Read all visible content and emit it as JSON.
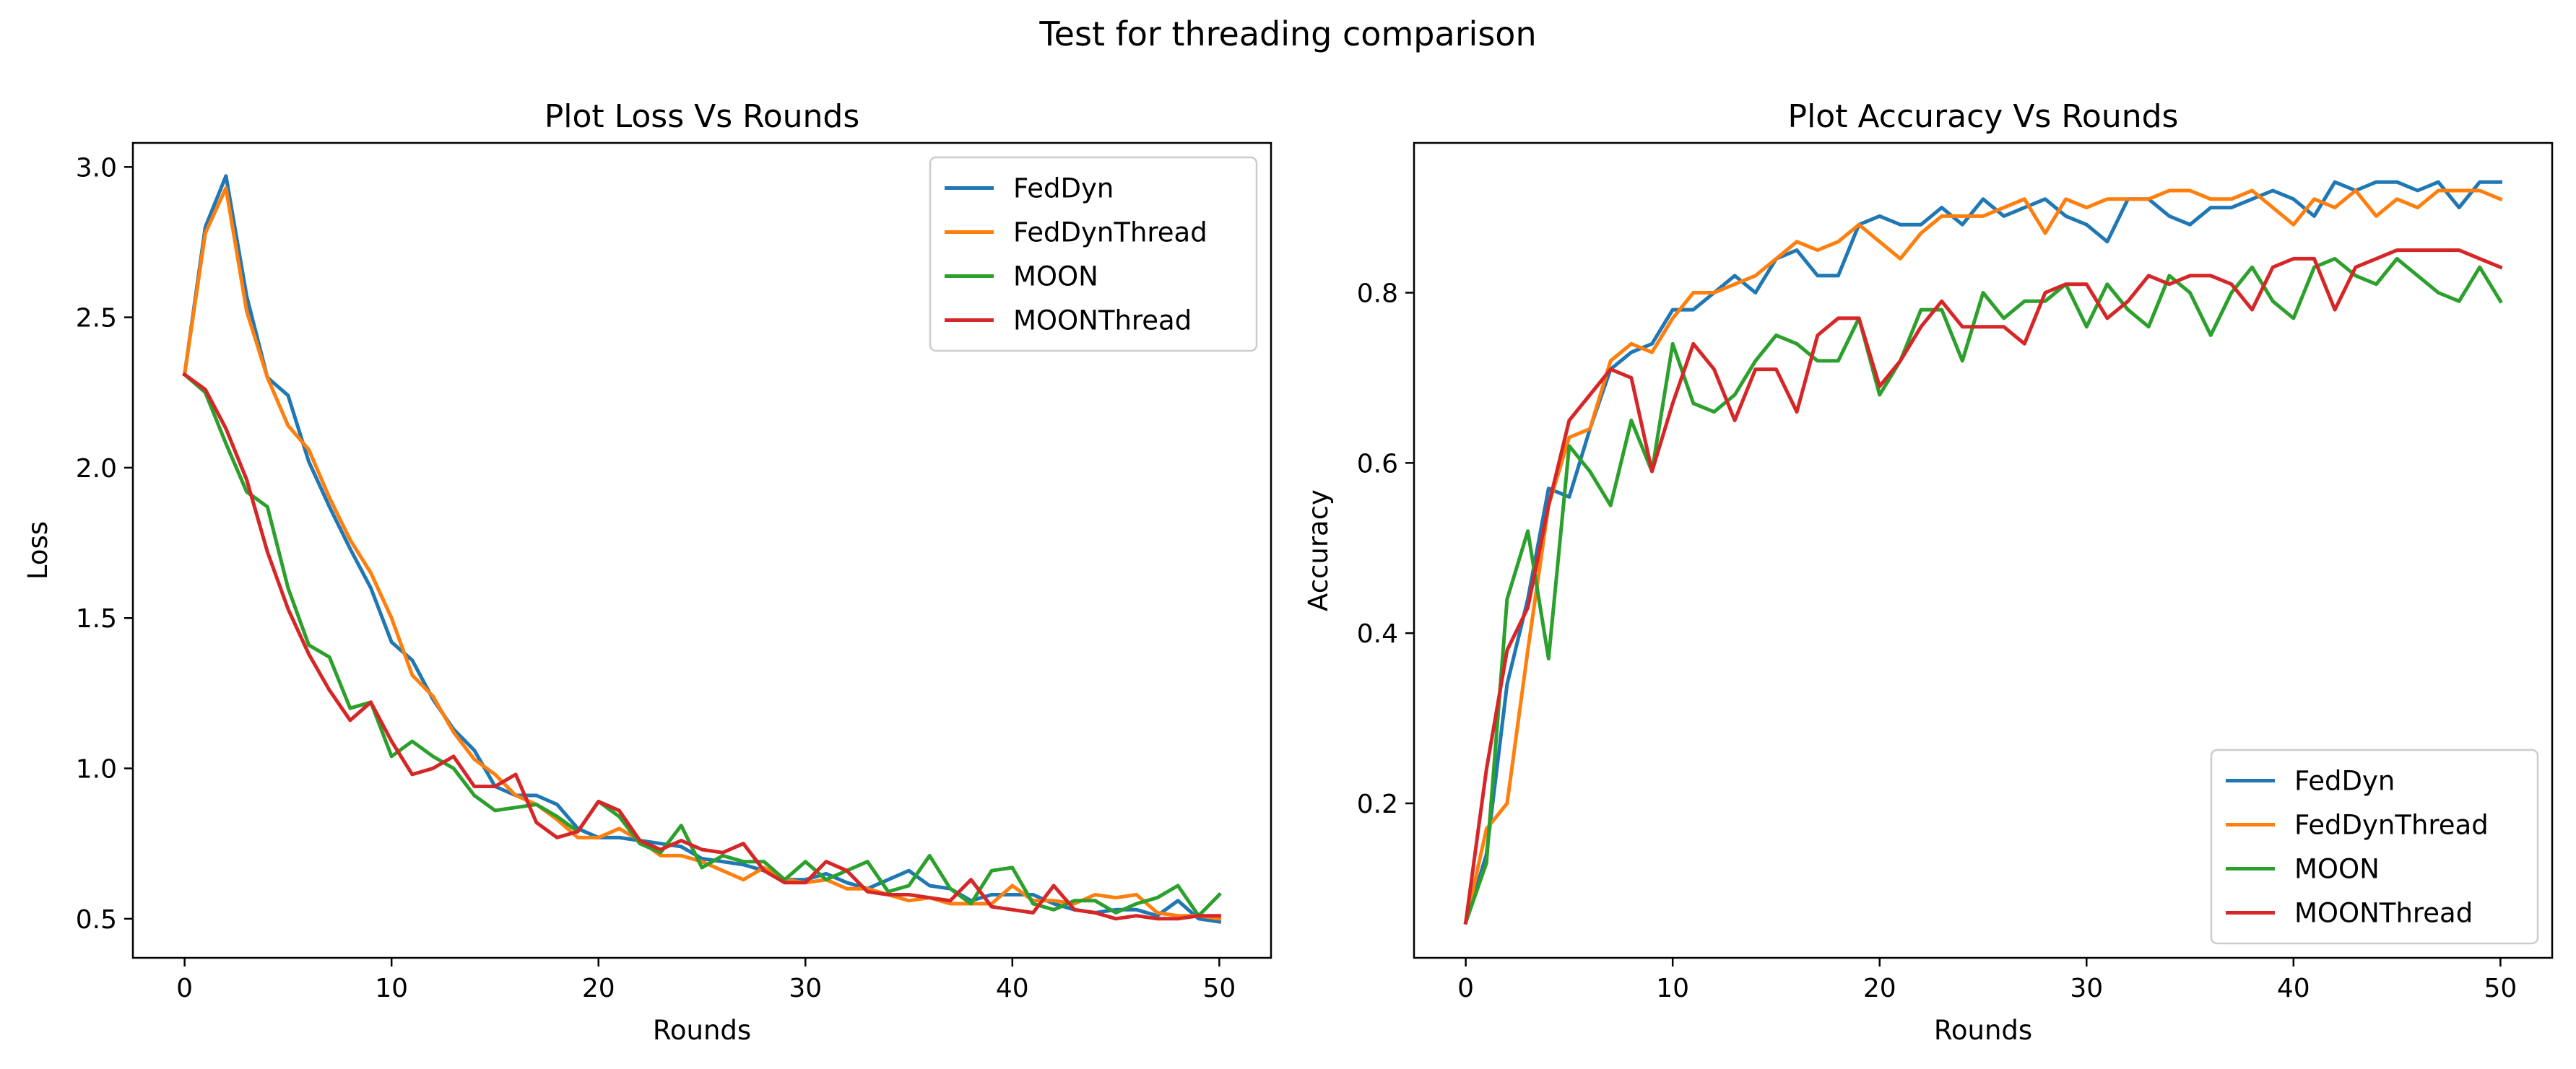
{
  "figure": {
    "title": "Test for threading comparison"
  },
  "colors": {
    "FedDyn": "#1f77b4",
    "FedDynThread": "#ff7f0e",
    "MOON": "#2ca02c",
    "MOONThread": "#d62728"
  },
  "chart_data": [
    {
      "type": "line",
      "title": "Plot Loss Vs Rounds",
      "xlabel": "Rounds",
      "ylabel": "Loss",
      "xlim": [
        -2.5,
        52.5
      ],
      "ylim": [
        0.37,
        3.08
      ],
      "xticks": [
        0,
        10,
        20,
        30,
        40,
        50
      ],
      "yticks": [
        0.5,
        1.0,
        1.5,
        2.0,
        2.5,
        3.0
      ],
      "ytick_labels": [
        "0.5",
        "1.0",
        "1.5",
        "2.0",
        "2.5",
        "3.0"
      ],
      "grid": false,
      "legend": "upper right",
      "x": [
        0,
        1,
        2,
        3,
        4,
        5,
        6,
        7,
        8,
        9,
        10,
        11,
        12,
        13,
        14,
        15,
        16,
        17,
        18,
        19,
        20,
        21,
        22,
        23,
        24,
        25,
        26,
        27,
        28,
        29,
        30,
        31,
        32,
        33,
        34,
        35,
        36,
        37,
        38,
        39,
        40,
        41,
        42,
        43,
        44,
        45,
        46,
        47,
        48,
        49,
        50
      ],
      "series": [
        {
          "name": "FedDyn",
          "values": [
            2.31,
            2.8,
            2.97,
            2.57,
            2.3,
            2.24,
            2.02,
            1.87,
            1.73,
            1.6,
            1.42,
            1.36,
            1.23,
            1.13,
            1.06,
            0.94,
            0.91,
            0.91,
            0.88,
            0.8,
            0.77,
            0.77,
            0.76,
            0.75,
            0.74,
            0.7,
            0.69,
            0.68,
            0.66,
            0.63,
            0.63,
            0.65,
            0.62,
            0.6,
            0.63,
            0.66,
            0.61,
            0.6,
            0.56,
            0.58,
            0.58,
            0.58,
            0.55,
            0.53,
            0.52,
            0.53,
            0.53,
            0.51,
            0.56,
            0.5,
            0.49
          ]
        },
        {
          "name": "FedDynThread",
          "values": [
            2.31,
            2.78,
            2.93,
            2.52,
            2.3,
            2.14,
            2.06,
            1.9,
            1.76,
            1.65,
            1.5,
            1.31,
            1.24,
            1.12,
            1.03,
            0.98,
            0.91,
            0.88,
            0.83,
            0.77,
            0.77,
            0.8,
            0.76,
            0.71,
            0.71,
            0.69,
            0.66,
            0.63,
            0.67,
            0.63,
            0.62,
            0.63,
            0.6,
            0.6,
            0.58,
            0.56,
            0.57,
            0.55,
            0.55,
            0.55,
            0.61,
            0.56,
            0.56,
            0.55,
            0.58,
            0.57,
            0.58,
            0.52,
            0.51,
            0.51,
            0.5
          ]
        },
        {
          "name": "MOON",
          "values": [
            2.31,
            2.25,
            2.08,
            1.92,
            1.87,
            1.6,
            1.41,
            1.37,
            1.2,
            1.22,
            1.04,
            1.09,
            1.04,
            1.0,
            0.91,
            0.86,
            0.87,
            0.88,
            0.84,
            0.79,
            0.89,
            0.84,
            0.75,
            0.72,
            0.81,
            0.67,
            0.71,
            0.69,
            0.69,
            0.63,
            0.69,
            0.63,
            0.66,
            0.69,
            0.59,
            0.61,
            0.71,
            0.6,
            0.55,
            0.66,
            0.67,
            0.55,
            0.53,
            0.56,
            0.56,
            0.52,
            0.55,
            0.57,
            0.61,
            0.51,
            0.58
          ]
        },
        {
          "name": "MOONThread",
          "values": [
            2.31,
            2.26,
            2.13,
            1.96,
            1.72,
            1.53,
            1.38,
            1.26,
            1.16,
            1.22,
            1.09,
            0.98,
            1.0,
            1.04,
            0.94,
            0.94,
            0.98,
            0.82,
            0.77,
            0.79,
            0.89,
            0.86,
            0.76,
            0.73,
            0.76,
            0.73,
            0.72,
            0.75,
            0.66,
            0.62,
            0.62,
            0.69,
            0.66,
            0.59,
            0.58,
            0.58,
            0.57,
            0.56,
            0.63,
            0.54,
            0.53,
            0.52,
            0.61,
            0.53,
            0.52,
            0.5,
            0.51,
            0.5,
            0.5,
            0.51,
            0.51
          ]
        }
      ]
    },
    {
      "type": "line",
      "title": "Plot Accuracy Vs Rounds",
      "xlabel": "Rounds",
      "ylabel": "Accuracy",
      "xlim": [
        -2.5,
        52.5
      ],
      "ylim": [
        0.0185,
        0.976
      ],
      "xticks": [
        0,
        10,
        20,
        30,
        40,
        50
      ],
      "yticks": [
        0.2,
        0.4,
        0.6,
        0.8
      ],
      "ytick_labels": [
        "0.2",
        "0.4",
        "0.6",
        "0.8"
      ],
      "grid": false,
      "legend": "lower right",
      "x": [
        0,
        1,
        2,
        3,
        4,
        5,
        6,
        7,
        8,
        9,
        10,
        11,
        12,
        13,
        14,
        15,
        16,
        17,
        18,
        19,
        20,
        21,
        22,
        23,
        24,
        25,
        26,
        27,
        28,
        29,
        30,
        31,
        32,
        33,
        34,
        35,
        36,
        37,
        38,
        39,
        40,
        41,
        42,
        43,
        44,
        45,
        46,
        47,
        48,
        49,
        50
      ],
      "series": [
        {
          "name": "FedDyn",
          "values": [
            0.06,
            0.14,
            0.34,
            0.44,
            0.57,
            0.56,
            0.64,
            0.71,
            0.73,
            0.74,
            0.78,
            0.78,
            0.8,
            0.82,
            0.8,
            0.84,
            0.85,
            0.82,
            0.82,
            0.88,
            0.89,
            0.88,
            0.88,
            0.9,
            0.88,
            0.91,
            0.89,
            0.9,
            0.91,
            0.89,
            0.88,
            0.86,
            0.91,
            0.91,
            0.89,
            0.88,
            0.9,
            0.9,
            0.91,
            0.92,
            0.91,
            0.89,
            0.93,
            0.92,
            0.93,
            0.93,
            0.92,
            0.93,
            0.9,
            0.93,
            0.93
          ]
        },
        {
          "name": "FedDynThread",
          "values": [
            0.06,
            0.17,
            0.2,
            0.38,
            0.55,
            0.63,
            0.64,
            0.72,
            0.74,
            0.73,
            0.77,
            0.8,
            0.8,
            0.81,
            0.82,
            0.84,
            0.86,
            0.85,
            0.86,
            0.88,
            0.86,
            0.84,
            0.87,
            0.89,
            0.89,
            0.89,
            0.9,
            0.91,
            0.87,
            0.91,
            0.9,
            0.91,
            0.91,
            0.91,
            0.92,
            0.92,
            0.91,
            0.91,
            0.92,
            0.9,
            0.88,
            0.91,
            0.9,
            0.92,
            0.89,
            0.91,
            0.9,
            0.92,
            0.92,
            0.92,
            0.91
          ]
        },
        {
          "name": "MOON",
          "values": [
            0.06,
            0.13,
            0.44,
            0.52,
            0.37,
            0.62,
            0.59,
            0.55,
            0.65,
            0.59,
            0.74,
            0.67,
            0.66,
            0.68,
            0.72,
            0.75,
            0.74,
            0.72,
            0.72,
            0.77,
            0.68,
            0.72,
            0.78,
            0.78,
            0.72,
            0.8,
            0.77,
            0.79,
            0.79,
            0.81,
            0.76,
            0.81,
            0.78,
            0.76,
            0.82,
            0.8,
            0.75,
            0.8,
            0.83,
            0.79,
            0.77,
            0.83,
            0.84,
            0.82,
            0.81,
            0.84,
            0.82,
            0.8,
            0.79,
            0.83,
            0.79
          ]
        },
        {
          "name": "MOONThread",
          "values": [
            0.06,
            0.24,
            0.38,
            0.43,
            0.55,
            0.65,
            0.68,
            0.71,
            0.7,
            0.59,
            0.67,
            0.74,
            0.71,
            0.65,
            0.71,
            0.71,
            0.66,
            0.75,
            0.77,
            0.77,
            0.69,
            0.72,
            0.76,
            0.79,
            0.76,
            0.76,
            0.76,
            0.74,
            0.8,
            0.81,
            0.81,
            0.77,
            0.79,
            0.82,
            0.81,
            0.82,
            0.82,
            0.81,
            0.78,
            0.83,
            0.84,
            0.84,
            0.78,
            0.83,
            0.84,
            0.85,
            0.85,
            0.85,
            0.85,
            0.84,
            0.83
          ]
        }
      ]
    }
  ]
}
